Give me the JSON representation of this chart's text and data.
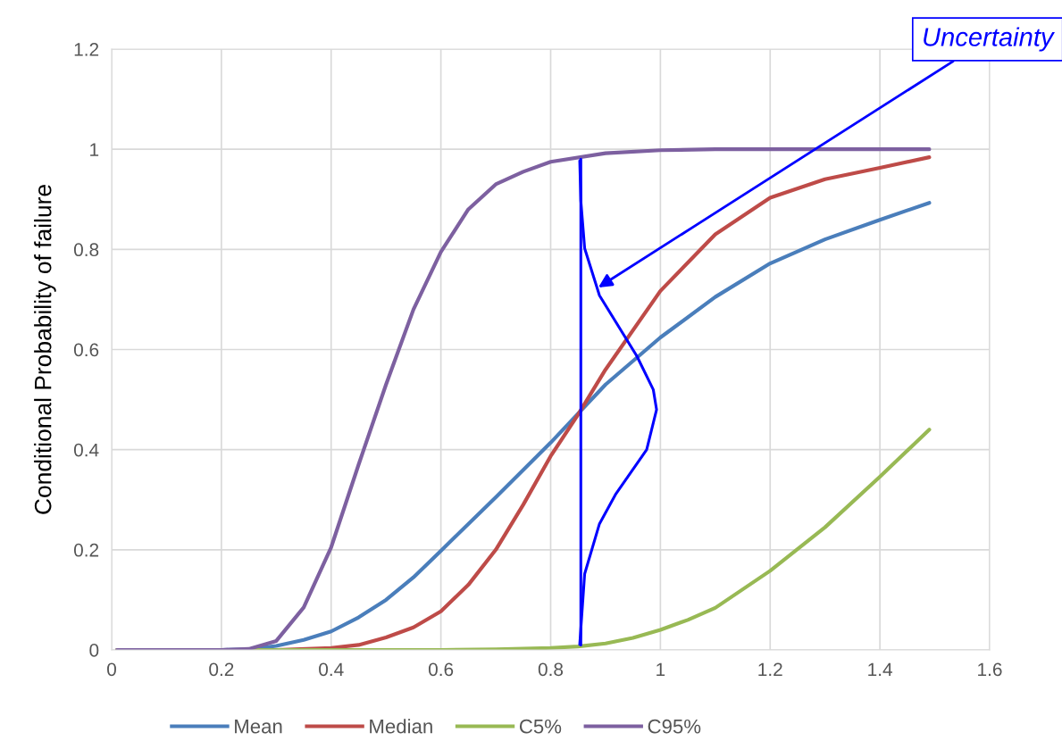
{
  "chart_data": {
    "type": "line",
    "ylabel": "Conditional Probability of failure",
    "xlim": [
      0,
      1.6
    ],
    "xticks": [
      0,
      0.2,
      0.4,
      0.6,
      0.8,
      1,
      1.2,
      1.4,
      1.6
    ],
    "ylim": [
      0,
      1.2
    ],
    "yticks": [
      0,
      0.2,
      0.4,
      0.6,
      0.8,
      1,
      1.2
    ],
    "grid": true,
    "legend": "bottom",
    "marker": "none",
    "line_style": "solid",
    "series": [
      {
        "name": "Mean",
        "color": "#4a7ebb",
        "x": [
          0.01,
          0.2,
          0.25,
          0.3,
          0.35,
          0.4,
          0.45,
          0.5,
          0.55,
          0.6,
          0.7,
          0.8,
          0.9,
          1.0,
          1.1,
          1.2,
          1.3,
          1.4,
          1.49
        ],
        "values": [
          0,
          0,
          0.001,
          0.008,
          0.02,
          0.037,
          0.065,
          0.1,
          0.145,
          0.198,
          0.305,
          0.414,
          0.53,
          0.624,
          0.705,
          0.772,
          0.82,
          0.859,
          0.893
        ]
      },
      {
        "name": "Median",
        "color": "#be4b48",
        "x": [
          0.01,
          0.3,
          0.4,
          0.45,
          0.5,
          0.55,
          0.6,
          0.65,
          0.7,
          0.75,
          0.8,
          0.85,
          0.9,
          1.0,
          1.1,
          1.2,
          1.3,
          1.4,
          1.49
        ],
        "values": [
          0,
          0,
          0.004,
          0.01,
          0.025,
          0.045,
          0.077,
          0.13,
          0.2,
          0.29,
          0.387,
          0.47,
          0.56,
          0.717,
          0.83,
          0.903,
          0.94,
          0.963,
          0.984
        ]
      },
      {
        "name": "C5%",
        "color": "#98b954",
        "x": [
          0.01,
          0.6,
          0.7,
          0.8,
          0.85,
          0.9,
          0.95,
          1.0,
          1.05,
          1.1,
          1.2,
          1.3,
          1.4,
          1.49
        ],
        "values": [
          0,
          0,
          0.001,
          0.004,
          0.007,
          0.013,
          0.024,
          0.04,
          0.06,
          0.084,
          0.158,
          0.245,
          0.346,
          0.44
        ]
      },
      {
        "name": "C95%",
        "color": "#7d60a0",
        "x": [
          0.01,
          0.1,
          0.2,
          0.25,
          0.3,
          0.35,
          0.4,
          0.45,
          0.5,
          0.55,
          0.6,
          0.65,
          0.7,
          0.75,
          0.8,
          0.9,
          1.0,
          1.1,
          1.2,
          1.3,
          1.4,
          1.49
        ],
        "values": [
          0,
          0,
          0,
          0.002,
          0.018,
          0.085,
          0.205,
          0.37,
          0.53,
          0.68,
          0.795,
          0.88,
          0.93,
          0.955,
          0.975,
          0.992,
          0.998,
          1,
          1,
          1,
          1,
          1
        ]
      },
      {
        "color": "#0000ff",
        "x": [
          0.855,
          0.855
        ],
        "values": [
          0.01,
          0.98
        ]
      },
      {
        "color": "#0000ff",
        "x": [
          0.853,
          0.862,
          0.889,
          0.919,
          0.975,
          0.993,
          0.987,
          0.957,
          0.889,
          0.862,
          0.855,
          0.853
        ],
        "values": [
          0.011,
          0.152,
          0.252,
          0.312,
          0.4,
          0.48,
          0.52,
          0.587,
          0.708,
          0.802,
          0.897,
          0.977
        ]
      }
    ],
    "annotations": [
      {
        "text": "Uncertainty",
        "x": 0.887,
        "y": 0.724
      }
    ]
  }
}
